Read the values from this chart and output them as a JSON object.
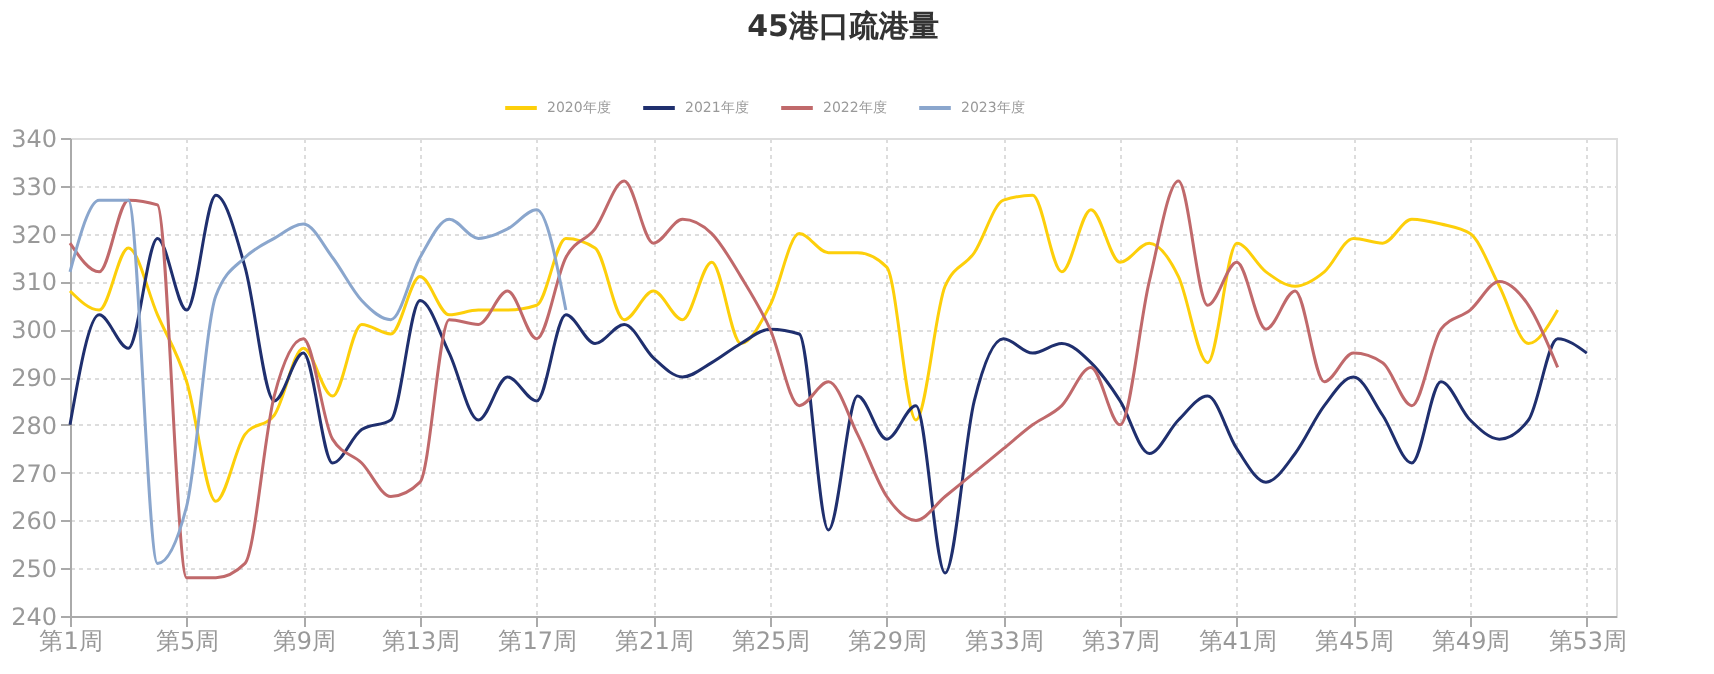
{
  "chart_data": {
    "type": "line",
    "title": "45港口疏港量",
    "categories": [
      "第1周",
      null,
      null,
      null,
      "第5周",
      null,
      null,
      null,
      "第9周",
      null,
      null,
      null,
      "第13周",
      null,
      null,
      null,
      "第17周",
      null,
      null,
      null,
      "第21周",
      null,
      null,
      null,
      "第25周",
      null,
      null,
      null,
      "第29周",
      null,
      null,
      null,
      "第33周",
      null,
      null,
      null,
      "第37周",
      null,
      null,
      null,
      "第41周",
      null,
      null,
      null,
      "第45周",
      null,
      null,
      null,
      "第49周",
      null,
      null,
      null,
      "第53周"
    ],
    "ylim": [
      240,
      340
    ],
    "yticks": [
      240,
      250,
      260,
      270,
      280,
      290,
      300,
      310,
      320,
      330,
      340
    ],
    "grid": true,
    "legend": "top",
    "marker": "none",
    "line_style": "solid",
    "series": [
      {
        "name": "2020年度",
        "color": "#fdcf0a",
        "values": [
          308,
          304,
          317,
          303,
          289,
          264,
          278,
          282,
          296,
          286,
          301,
          299,
          311,
          303,
          304,
          304,
          305,
          319,
          317,
          302,
          308,
          302,
          314,
          297,
          305,
          320,
          316,
          316,
          313,
          281,
          309,
          316,
          327,
          328,
          312,
          325,
          314,
          318,
          311,
          293,
          318,
          312,
          309,
          312,
          319,
          318,
          323,
          322,
          320,
          309,
          297,
          304,
          null
        ]
      },
      {
        "name": "2021年度",
        "color": "#1f2f6e",
        "values": [
          280,
          303,
          296,
          319,
          304,
          328,
          313,
          285,
          295,
          272,
          279,
          281,
          306,
          295,
          281,
          290,
          285,
          303,
          297,
          301,
          294,
          290,
          293,
          297,
          300,
          299,
          258,
          286,
          277,
          284,
          249,
          285,
          298,
          295,
          297,
          293,
          285,
          274,
          281,
          286,
          275,
          268,
          274,
          284,
          290,
          282,
          272,
          289,
          281,
          277,
          281,
          298,
          295
        ]
      },
      {
        "name": "2022年度",
        "color": "#c0696b",
        "values": [
          318,
          312,
          327,
          326,
          248,
          248,
          251,
          286,
          298,
          277,
          272,
          265,
          268,
          302,
          301,
          308,
          298,
          315,
          321,
          331,
          318,
          323,
          320,
          311,
          300,
          284,
          289,
          278,
          265,
          260,
          265,
          270,
          275,
          280,
          284,
          292,
          280,
          310,
          331,
          305,
          314,
          300,
          308,
          289,
          295,
          293,
          284,
          300,
          304,
          310,
          305,
          292,
          null
        ]
      },
      {
        "name": "2023年度",
        "color": "#8aa6cd",
        "values": [
          312,
          327,
          327,
          251,
          263,
          307,
          315,
          319,
          322,
          315,
          306,
          302,
          315,
          323,
          319,
          321,
          325,
          304,
          null,
          null,
          null,
          null,
          null,
          null,
          null,
          null,
          null,
          null,
          null,
          null,
          null,
          null,
          null,
          null,
          null,
          null,
          null,
          null,
          null,
          null,
          null,
          null,
          null,
          null,
          null,
          null,
          null,
          null,
          null,
          null,
          null,
          null,
          null
        ]
      }
    ]
  }
}
